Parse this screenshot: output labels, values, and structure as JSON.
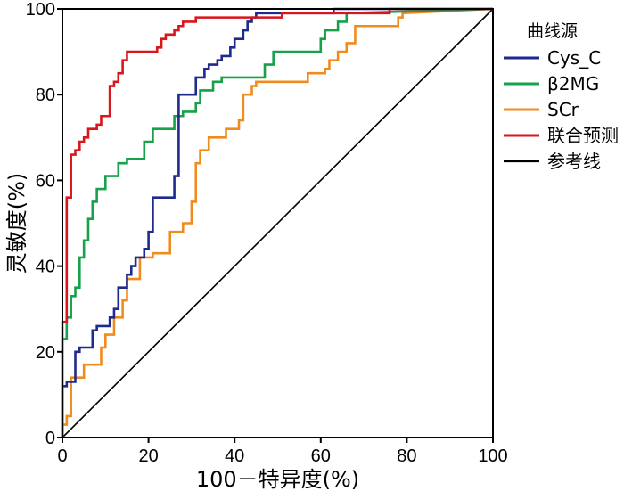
{
  "chart_data": {
    "type": "line",
    "xlabel": "100－特异度(%)",
    "ylabel": "灵敏度(%)",
    "xlim": [
      0,
      100
    ],
    "ylim": [
      0,
      100
    ],
    "xticks": [
      0,
      20,
      40,
      60,
      80,
      100
    ],
    "yticks": [
      0,
      20,
      40,
      60,
      80,
      100
    ],
    "grid": false,
    "legend_title": "曲线源",
    "legend_position": "right",
    "series": [
      {
        "name": "Cys_C",
        "color": "#1f2a8c",
        "x": [
          0,
          0,
          1,
          1,
          3,
          3,
          4,
          4,
          7,
          7,
          8,
          8,
          11,
          11,
          12,
          12,
          13,
          13,
          15,
          15,
          16,
          16,
          17,
          17,
          19,
          19,
          20,
          20,
          21,
          21,
          22,
          22,
          26,
          26,
          27,
          27,
          31,
          31,
          33,
          33,
          34,
          34,
          36,
          36,
          37,
          37,
          39,
          39,
          40,
          40,
          42,
          42,
          43,
          43,
          44,
          44,
          45,
          45,
          49,
          49,
          63,
          63,
          100
        ],
        "y": [
          0,
          12,
          12,
          13,
          13,
          20,
          20,
          21,
          21,
          25,
          25,
          26,
          26,
          28,
          28,
          30,
          30,
          35,
          35,
          38,
          38,
          40,
          40,
          42,
          42,
          44,
          44,
          48,
          48,
          56,
          56,
          56,
          56,
          61,
          61,
          80,
          80,
          84,
          84,
          86,
          86,
          87,
          87,
          88,
          88,
          89,
          89,
          91,
          91,
          93,
          93,
          95,
          95,
          97,
          97,
          98,
          98,
          99,
          99,
          99,
          99,
          100,
          100
        ]
      },
      {
        "name": "β2MG",
        "color": "#17a14a",
        "x": [
          0,
          0,
          1,
          1,
          2,
          2,
          3,
          3,
          4,
          4,
          5,
          5,
          6,
          6,
          7,
          7,
          8,
          8,
          10,
          10,
          13,
          13,
          15,
          15,
          19,
          19,
          21,
          21,
          26,
          26,
          28,
          28,
          31,
          31,
          32,
          32,
          35,
          35,
          37,
          37,
          47,
          47,
          49,
          49,
          52,
          52,
          60,
          60,
          61,
          61,
          64,
          64,
          66,
          66,
          100
        ],
        "y": [
          0,
          23,
          23,
          28,
          28,
          33,
          33,
          35,
          35,
          42,
          42,
          46,
          46,
          51,
          51,
          55,
          55,
          58,
          58,
          61,
          61,
          64,
          64,
          65,
          65,
          69,
          69,
          72,
          72,
          75,
          75,
          76,
          76,
          78,
          78,
          81,
          81,
          83,
          83,
          84,
          84,
          87,
          87,
          90,
          90,
          90,
          90,
          93,
          93,
          95,
          95,
          97,
          97,
          99,
          100
        ]
      },
      {
        "name": "SCr",
        "color": "#f08c1e",
        "x": [
          0,
          0,
          1,
          1,
          2,
          2,
          5,
          5,
          9,
          9,
          10,
          10,
          12,
          12,
          14,
          14,
          15,
          15,
          18,
          18,
          21,
          21,
          25,
          25,
          28,
          28,
          30,
          30,
          31,
          31,
          32,
          32,
          34,
          34,
          38,
          38,
          41,
          41,
          42,
          42,
          44,
          44,
          45,
          45,
          57,
          57,
          61,
          61,
          62,
          62,
          64,
          64,
          66,
          66,
          68,
          68,
          78,
          78,
          79,
          79,
          100
        ],
        "y": [
          0,
          3,
          3,
          5,
          5,
          14,
          14,
          17,
          17,
          21,
          21,
          24,
          24,
          28,
          28,
          32,
          32,
          37,
          37,
          42,
          42,
          43,
          43,
          48,
          48,
          50,
          50,
          55,
          55,
          64,
          64,
          67,
          67,
          70,
          70,
          72,
          72,
          74,
          74,
          80,
          80,
          82,
          82,
          83,
          83,
          85,
          85,
          86,
          86,
          88,
          88,
          90,
          90,
          92,
          92,
          96,
          96,
          98,
          98,
          99,
          100
        ]
      },
      {
        "name": "联合预测",
        "color": "#d9161c",
        "x": [
          0,
          0,
          1,
          1,
          2,
          2,
          3,
          3,
          4,
          4,
          5,
          5,
          6,
          6,
          8,
          8,
          9,
          9,
          11,
          11,
          12,
          12,
          13,
          13,
          14,
          14,
          15,
          15,
          22,
          22,
          23,
          23,
          24,
          24,
          26,
          26,
          27,
          27,
          28,
          28,
          31,
          31,
          51,
          51,
          76,
          76,
          100
        ],
        "y": [
          0,
          27,
          27,
          56,
          56,
          66,
          66,
          67,
          67,
          69,
          69,
          70,
          70,
          72,
          72,
          73,
          73,
          75,
          75,
          82,
          82,
          83,
          83,
          85,
          85,
          88,
          88,
          90,
          90,
          91,
          91,
          93,
          93,
          94,
          94,
          95,
          95,
          96,
          96,
          97,
          97,
          98,
          98,
          99,
          99,
          100,
          100
        ]
      },
      {
        "name": "参考线",
        "color": "#000000",
        "x": [
          0,
          100
        ],
        "y": [
          0,
          100
        ]
      }
    ]
  }
}
